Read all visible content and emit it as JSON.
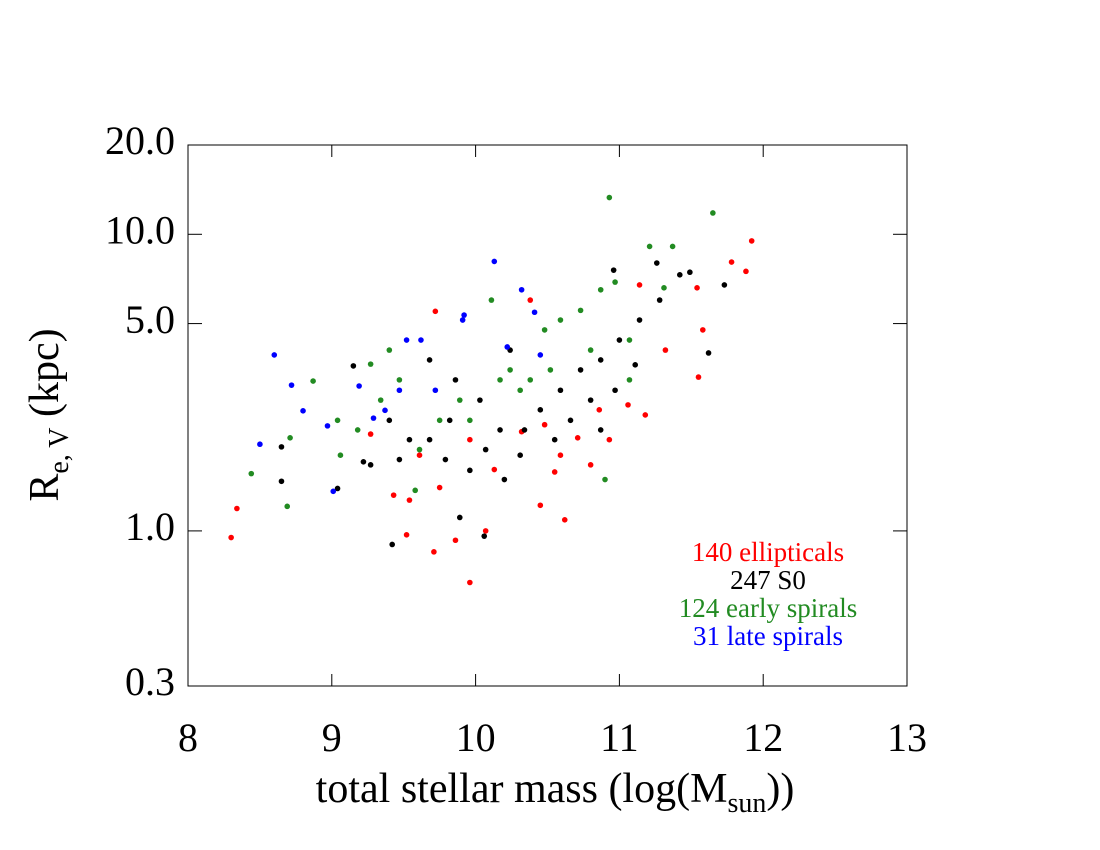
{
  "chart_data": {
    "type": "scatter",
    "x_label": {
      "main": "total stellar mass (log(M",
      "sub": "sun",
      "rest": "))"
    },
    "y_label": {
      "main": "R",
      "sub": "e, V",
      "rest": " (kpc)"
    },
    "xlim": [
      8,
      13
    ],
    "xticks": [
      8,
      9,
      10,
      11,
      12,
      13
    ],
    "ylim": [
      0.3,
      20
    ],
    "y_log": true,
    "yticks": [
      {
        "value": 20,
        "label": "20.0"
      },
      {
        "value": 10,
        "label": "10.0"
      },
      {
        "value": 5,
        "label": "5.0"
      },
      {
        "value": 1,
        "label": "1.0"
      },
      0.3
    ],
    "legend": "lower right",
    "series": [
      {
        "name": "140 ellipticals",
        "color": "#ff0000",
        "x": [
          8.3,
          8.34,
          9.27,
          9.43,
          9.52,
          9.71,
          9.72,
          9.96,
          9.86,
          10.07,
          10.38,
          10.55,
          10.62,
          10.8,
          11.14,
          11.54,
          11.55,
          11.58,
          11.78,
          11.88,
          11.92,
          11.06,
          11.18,
          10.71,
          10.32,
          10.13,
          9.54,
          9.75,
          9.96,
          10.48,
          10.86,
          10.59,
          9.61,
          11.32,
          10.93,
          10.45
        ],
        "values": [
          0.95,
          1.19,
          2.12,
          1.32,
          0.97,
          0.85,
          5.5,
          0.67,
          0.93,
          1.0,
          6.0,
          1.58,
          1.09,
          1.67,
          6.75,
          6.6,
          3.3,
          4.76,
          8.06,
          7.5,
          9.5,
          2.66,
          2.46,
          2.06,
          2.16,
          1.61,
          1.27,
          1.4,
          2.03,
          2.28,
          2.56,
          1.8,
          1.8,
          4.07,
          2.03,
          1.22
        ]
      },
      {
        "name": "247 S0",
        "color": "#000000",
        "x": [
          8.65,
          8.65,
          9.04,
          9.22,
          9.42,
          9.89,
          10.06,
          9.68,
          9.82,
          10.03,
          10.17,
          10.31,
          9.96,
          10.45,
          10.59,
          10.73,
          10.87,
          11.0,
          11.14,
          11.28,
          11.42,
          11.49,
          11.73,
          11.62,
          11.26,
          10.96,
          9.4,
          9.54,
          9.27,
          9.79,
          10.2,
          10.34,
          10.66,
          10.8,
          10.97,
          10.24,
          9.86,
          9.68,
          10.87,
          11.11,
          10.55,
          10.07,
          9.47,
          9.15
        ],
        "values": [
          1.92,
          1.47,
          1.39,
          1.71,
          0.9,
          1.11,
          0.96,
          2.03,
          2.36,
          2.76,
          2.19,
          1.8,
          1.6,
          2.56,
          2.98,
          3.49,
          3.77,
          4.4,
          5.14,
          6.0,
          7.3,
          7.45,
          6.75,
          3.98,
          8.0,
          7.57,
          2.36,
          2.03,
          1.67,
          1.74,
          1.49,
          2.19,
          2.36,
          2.76,
          2.98,
          4.07,
          3.23,
          3.77,
          2.19,
          3.63,
          2.03,
          1.88,
          1.74,
          3.6
        ]
      },
      {
        "name": "124 early spirals",
        "color": "#228b22",
        "x": [
          8.44,
          8.69,
          8.71,
          8.87,
          9.04,
          9.27,
          9.34,
          9.47,
          9.58,
          9.75,
          9.89,
          10.11,
          10.24,
          10.38,
          10.48,
          10.59,
          10.73,
          10.87,
          10.97,
          10.93,
          11.21,
          11.37,
          11.65,
          11.31,
          11.07,
          11.07,
          10.9,
          10.8,
          10.17,
          9.96,
          9.61,
          9.18,
          9.06,
          9.4,
          10.31,
          10.52
        ],
        "values": [
          1.56,
          1.21,
          2.06,
          3.2,
          2.36,
          3.65,
          2.76,
          3.23,
          1.37,
          2.36,
          2.76,
          6.0,
          3.49,
          3.23,
          4.76,
          5.14,
          5.54,
          6.5,
          6.9,
          13.3,
          9.1,
          9.1,
          11.8,
          6.6,
          4.4,
          3.23,
          1.49,
          4.07,
          3.23,
          2.36,
          1.88,
          2.19,
          1.8,
          4.07,
          2.98,
          3.49
        ]
      },
      {
        "name": "31 late spirals",
        "color": "#0000ff",
        "x": [
          8.6,
          8.5,
          8.72,
          8.8,
          8.97,
          9.01,
          9.19,
          9.29,
          9.52,
          9.62,
          9.72,
          9.92,
          10.13,
          10.32,
          10.41,
          10.22,
          10.45,
          9.47,
          9.37,
          9.91
        ],
        "values": [
          3.92,
          1.96,
          3.1,
          2.54,
          2.26,
          1.36,
          3.08,
          2.4,
          4.4,
          4.4,
          2.98,
          5.34,
          8.1,
          6.5,
          5.46,
          4.17,
          3.92,
          2.98,
          2.55,
          5.14
        ]
      }
    ]
  }
}
